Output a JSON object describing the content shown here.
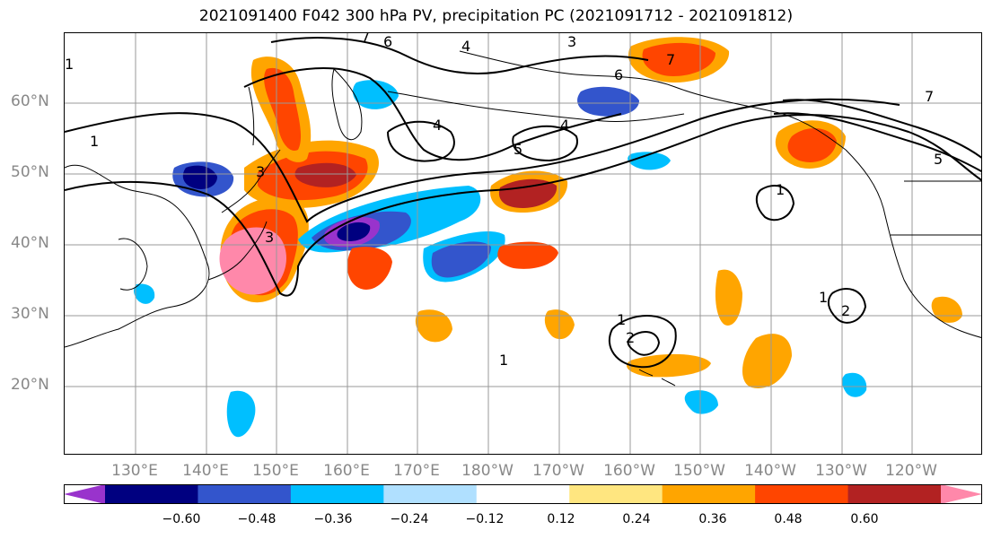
{
  "title": "2021091400 F042 300 hPa PV, precipitation PC (2021091712 - 2021091812)",
  "latitude_labels": [
    "60°N",
    "50°N",
    "40°N",
    "30°N",
    "20°N"
  ],
  "longitude_labels": [
    "130°E",
    "140°E",
    "150°E",
    "160°E",
    "170°E",
    "180°W",
    "170°W",
    "160°W",
    "150°W",
    "140°W",
    "130°W",
    "120°W"
  ],
  "colorbar": {
    "colors": [
      "#9933cc",
      "#000080",
      "#3355cc",
      "#00bfff",
      "#b0e0ff",
      "#ffffff",
      "#ffe680",
      "#ffa500",
      "#ff4500",
      "#b22222",
      "#ff88aa"
    ],
    "tick_labels": [
      "−0.60",
      "−0.48",
      "−0.36",
      "−0.24",
      "−0.12",
      "0.12",
      "0.24",
      "0.36",
      "0.48",
      "0.60"
    ]
  },
  "pv_contour_labels": [
    "1",
    "1",
    "1",
    "1",
    "1",
    "1",
    "2",
    "2",
    "3",
    "3",
    "3",
    "4",
    "4",
    "4",
    "5",
    "5",
    "6",
    "6",
    "7",
    "7",
    "7"
  ],
  "colors": {
    "land_border": "#000000",
    "grid": "#999999",
    "axis_text": "#888888"
  }
}
